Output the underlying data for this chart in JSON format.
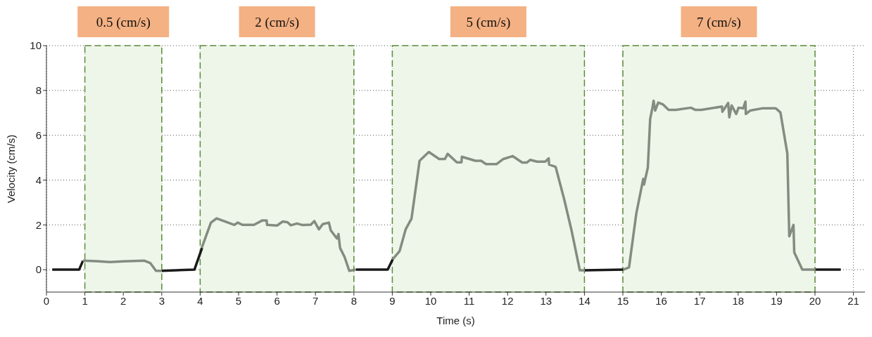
{
  "chart_data": {
    "type": "line",
    "xlabel": "Time (s)",
    "ylabel": "Velocity (cm/s)",
    "xlim": [
      0,
      21.3
    ],
    "xticks": [
      0,
      1,
      2,
      3,
      4,
      5,
      6,
      7,
      8,
      9,
      10,
      11,
      12,
      13,
      14,
      15,
      16,
      17,
      18,
      19,
      20,
      21
    ],
    "ylim": [
      -1,
      10
    ],
    "yticks": [
      0,
      2,
      4,
      6,
      8,
      10
    ],
    "grid": true,
    "legend": false,
    "marker": "none",
    "line_style": "solid",
    "series": [
      {
        "color": "#1a1a1a",
        "x": [
          0.15,
          0.85,
          0.95,
          2,
          3,
          3.85,
          4.05,
          6,
          8.05,
          8.88,
          9.01,
          11,
          14.01,
          15.01,
          17,
          20.01,
          20.67
        ],
        "values": [
          0,
          0,
          0.4,
          null,
          -0.05,
          0,
          0.97,
          null,
          0,
          0,
          0.46,
          null,
          -0.03,
          0,
          null,
          0,
          0
        ]
      },
      {
        "color": "#848b80",
        "x": [
          0.95,
          1.3,
          1.65,
          2.0,
          2.55,
          2.7,
          2.85,
          3.0
        ],
        "values": [
          0.4,
          0.38,
          0.34,
          0.37,
          0.4,
          0.3,
          -0.05,
          -0.05
        ]
      },
      {
        "color": "#848b80",
        "x": [
          4.04,
          4.28,
          4.43,
          4.68,
          4.89,
          4.98,
          5.1,
          5.4,
          5.62,
          5.73,
          5.74,
          6.0,
          6.15,
          6.27,
          6.36,
          6.52,
          6.67,
          6.88,
          6.97,
          7.09,
          7.19,
          7.35,
          7.4,
          7.56,
          7.6,
          7.64,
          7.76,
          7.88,
          8.05
        ],
        "values": [
          0.97,
          2.1,
          2.29,
          2.13,
          2.0,
          2.1,
          2.0,
          2.0,
          2.2,
          2.2,
          2.0,
          1.97,
          2.15,
          2.12,
          1.98,
          2.06,
          1.99,
          2.01,
          2.17,
          1.8,
          2.03,
          2.1,
          1.75,
          1.39,
          1.59,
          0.97,
          0.56,
          -0.05,
          0
        ]
      },
      {
        "color": "#848b80",
        "x": [
          9.01,
          9.19,
          9.35,
          9.5,
          9.71,
          9.95,
          10.22,
          10.37,
          10.44,
          10.68,
          10.8,
          10.81,
          11.16,
          11.31,
          11.44,
          11.71,
          11.89,
          12.13,
          12.38,
          12.5,
          12.59,
          12.77,
          12.98,
          13.07,
          13.08,
          13.25,
          13.47,
          13.67,
          13.88,
          14.01
        ],
        "values": [
          0.46,
          0.83,
          1.81,
          2.28,
          4.86,
          5.25,
          4.94,
          4.94,
          5.17,
          4.79,
          4.79,
          5.04,
          4.86,
          4.86,
          4.71,
          4.71,
          4.94,
          5.07,
          4.78,
          4.78,
          4.9,
          4.82,
          4.82,
          4.97,
          4.69,
          4.59,
          3.16,
          1.71,
          -0.03,
          -0.03
        ]
      },
      {
        "color": "#848b80",
        "x": [
          15.01,
          15.16,
          15.35,
          15.53,
          15.55,
          15.65,
          15.71,
          15.77,
          15.8,
          15.84,
          15.92,
          16.04,
          16.19,
          16.38,
          16.77,
          16.89,
          17.04,
          17.58,
          17.59,
          17.74,
          17.77,
          17.83,
          17.95,
          18.01,
          18.13,
          18.19,
          18.2,
          18.31,
          18.62,
          18.98,
          19.1,
          19.28,
          19.33,
          19.44,
          19.46,
          19.67,
          20.01
        ],
        "values": [
          0,
          0.1,
          2.51,
          4.05,
          3.8,
          4.56,
          6.72,
          7.23,
          7.54,
          7.1,
          7.46,
          7.38,
          7.13,
          7.13,
          7.23,
          7.13,
          7.13,
          7.28,
          7.05,
          7.44,
          6.8,
          7.33,
          6.95,
          7.23,
          7.2,
          7.5,
          6.95,
          7.1,
          7.2,
          7.2,
          7.02,
          5.18,
          1.49,
          2.0,
          0.77,
          0,
          0
        ]
      }
    ],
    "bands": [
      {
        "axis": "x",
        "from": 1,
        "to": 3,
        "label": "0.5 (cm/s)",
        "color": "#eef6e9"
      },
      {
        "axis": "x",
        "from": 4,
        "to": 8,
        "label": "2 (cm/s)",
        "color": "#eef6e9"
      },
      {
        "axis": "x",
        "from": 9,
        "to": 14,
        "label": "5 (cm/s)",
        "color": "#eef6e9"
      },
      {
        "axis": "x",
        "from": 15,
        "to": 20,
        "label": "7 (cm/s)",
        "color": "#eef6e9"
      }
    ]
  }
}
